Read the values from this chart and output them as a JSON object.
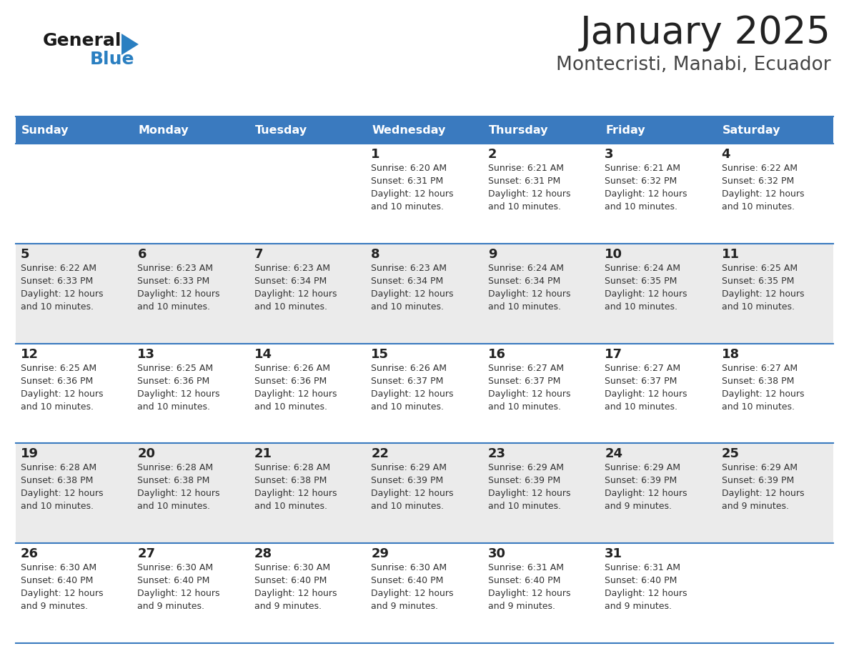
{
  "title": "January 2025",
  "subtitle": "Montecristi, Manabi, Ecuador",
  "header_bg": "#3a7abf",
  "header_text_color": "#ffffff",
  "cell_bg_odd": "#ffffff",
  "cell_bg_even": "#ebebeb",
  "row_line_color": "#3a7abf",
  "text_color": "#333333",
  "day_num_color": "#222222",
  "days_of_week": [
    "Sunday",
    "Monday",
    "Tuesday",
    "Wednesday",
    "Thursday",
    "Friday",
    "Saturday"
  ],
  "calendar_data": [
    [
      {
        "day": "",
        "info": ""
      },
      {
        "day": "",
        "info": ""
      },
      {
        "day": "",
        "info": ""
      },
      {
        "day": "1",
        "info": "Sunrise: 6:20 AM\nSunset: 6:31 PM\nDaylight: 12 hours\nand 10 minutes."
      },
      {
        "day": "2",
        "info": "Sunrise: 6:21 AM\nSunset: 6:31 PM\nDaylight: 12 hours\nand 10 minutes."
      },
      {
        "day": "3",
        "info": "Sunrise: 6:21 AM\nSunset: 6:32 PM\nDaylight: 12 hours\nand 10 minutes."
      },
      {
        "day": "4",
        "info": "Sunrise: 6:22 AM\nSunset: 6:32 PM\nDaylight: 12 hours\nand 10 minutes."
      }
    ],
    [
      {
        "day": "5",
        "info": "Sunrise: 6:22 AM\nSunset: 6:33 PM\nDaylight: 12 hours\nand 10 minutes."
      },
      {
        "day": "6",
        "info": "Sunrise: 6:23 AM\nSunset: 6:33 PM\nDaylight: 12 hours\nand 10 minutes."
      },
      {
        "day": "7",
        "info": "Sunrise: 6:23 AM\nSunset: 6:34 PM\nDaylight: 12 hours\nand 10 minutes."
      },
      {
        "day": "8",
        "info": "Sunrise: 6:23 AM\nSunset: 6:34 PM\nDaylight: 12 hours\nand 10 minutes."
      },
      {
        "day": "9",
        "info": "Sunrise: 6:24 AM\nSunset: 6:34 PM\nDaylight: 12 hours\nand 10 minutes."
      },
      {
        "day": "10",
        "info": "Sunrise: 6:24 AM\nSunset: 6:35 PM\nDaylight: 12 hours\nand 10 minutes."
      },
      {
        "day": "11",
        "info": "Sunrise: 6:25 AM\nSunset: 6:35 PM\nDaylight: 12 hours\nand 10 minutes."
      }
    ],
    [
      {
        "day": "12",
        "info": "Sunrise: 6:25 AM\nSunset: 6:36 PM\nDaylight: 12 hours\nand 10 minutes."
      },
      {
        "day": "13",
        "info": "Sunrise: 6:25 AM\nSunset: 6:36 PM\nDaylight: 12 hours\nand 10 minutes."
      },
      {
        "day": "14",
        "info": "Sunrise: 6:26 AM\nSunset: 6:36 PM\nDaylight: 12 hours\nand 10 minutes."
      },
      {
        "day": "15",
        "info": "Sunrise: 6:26 AM\nSunset: 6:37 PM\nDaylight: 12 hours\nand 10 minutes."
      },
      {
        "day": "16",
        "info": "Sunrise: 6:27 AM\nSunset: 6:37 PM\nDaylight: 12 hours\nand 10 minutes."
      },
      {
        "day": "17",
        "info": "Sunrise: 6:27 AM\nSunset: 6:37 PM\nDaylight: 12 hours\nand 10 minutes."
      },
      {
        "day": "18",
        "info": "Sunrise: 6:27 AM\nSunset: 6:38 PM\nDaylight: 12 hours\nand 10 minutes."
      }
    ],
    [
      {
        "day": "19",
        "info": "Sunrise: 6:28 AM\nSunset: 6:38 PM\nDaylight: 12 hours\nand 10 minutes."
      },
      {
        "day": "20",
        "info": "Sunrise: 6:28 AM\nSunset: 6:38 PM\nDaylight: 12 hours\nand 10 minutes."
      },
      {
        "day": "21",
        "info": "Sunrise: 6:28 AM\nSunset: 6:38 PM\nDaylight: 12 hours\nand 10 minutes."
      },
      {
        "day": "22",
        "info": "Sunrise: 6:29 AM\nSunset: 6:39 PM\nDaylight: 12 hours\nand 10 minutes."
      },
      {
        "day": "23",
        "info": "Sunrise: 6:29 AM\nSunset: 6:39 PM\nDaylight: 12 hours\nand 10 minutes."
      },
      {
        "day": "24",
        "info": "Sunrise: 6:29 AM\nSunset: 6:39 PM\nDaylight: 12 hours\nand 9 minutes."
      },
      {
        "day": "25",
        "info": "Sunrise: 6:29 AM\nSunset: 6:39 PM\nDaylight: 12 hours\nand 9 minutes."
      }
    ],
    [
      {
        "day": "26",
        "info": "Sunrise: 6:30 AM\nSunset: 6:40 PM\nDaylight: 12 hours\nand 9 minutes."
      },
      {
        "day": "27",
        "info": "Sunrise: 6:30 AM\nSunset: 6:40 PM\nDaylight: 12 hours\nand 9 minutes."
      },
      {
        "day": "28",
        "info": "Sunrise: 6:30 AM\nSunset: 6:40 PM\nDaylight: 12 hours\nand 9 minutes."
      },
      {
        "day": "29",
        "info": "Sunrise: 6:30 AM\nSunset: 6:40 PM\nDaylight: 12 hours\nand 9 minutes."
      },
      {
        "day": "30",
        "info": "Sunrise: 6:31 AM\nSunset: 6:40 PM\nDaylight: 12 hours\nand 9 minutes."
      },
      {
        "day": "31",
        "info": "Sunrise: 6:31 AM\nSunset: 6:40 PM\nDaylight: 12 hours\nand 9 minutes."
      },
      {
        "day": "",
        "info": ""
      }
    ]
  ],
  "logo_color_general": "#1a1a1a",
  "logo_color_blue": "#2a7fc1",
  "logo_triangle_color": "#2a7fc1",
  "title_color": "#222222",
  "subtitle_color": "#444444",
  "title_fontsize": 38,
  "subtitle_fontsize": 19,
  "header_fontsize": 11.5,
  "day_num_fontsize": 13,
  "info_fontsize": 9
}
